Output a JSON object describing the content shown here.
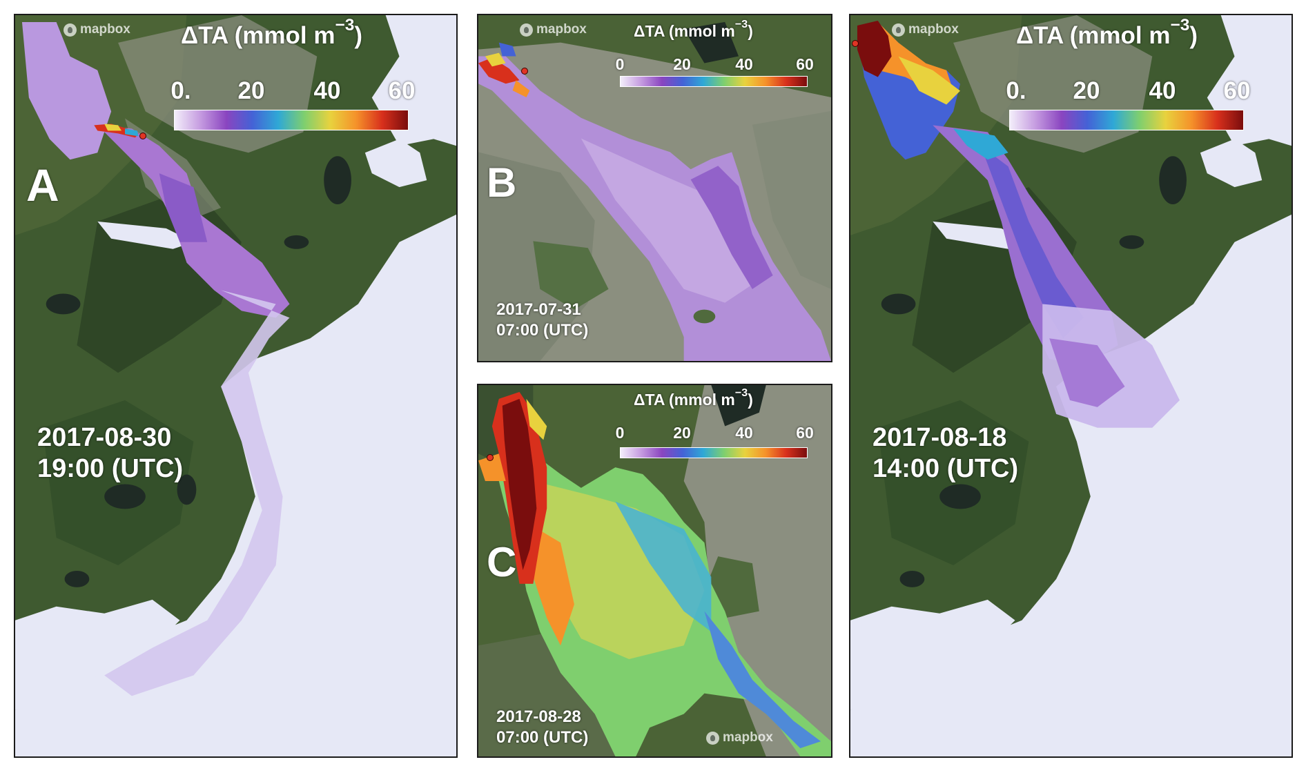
{
  "panels": {
    "a": {
      "letter": "A",
      "timestamp_date": "2017-08-30",
      "timestamp_time": "19:00 (UTC)",
      "logo": "mapbox",
      "colorbar": {
        "title": "ΔTA (mmol m",
        "title_exp": "−3",
        "title_close": ")",
        "ticks": [
          "0.",
          "20",
          "40",
          "60"
        ]
      }
    },
    "b": {
      "letter": "B",
      "timestamp_date": "2017-07-31",
      "timestamp_time": "07:00 (UTC)",
      "logo": "mapbox",
      "colorbar": {
        "title": "ΔTA (mmol m",
        "title_exp": "−3",
        "title_close": ")",
        "ticks": [
          "0",
          "20",
          "40",
          "60"
        ]
      }
    },
    "c": {
      "letter": "C",
      "timestamp_date": "2017-08-28",
      "timestamp_time": "07:00 (UTC)",
      "logo": "mapbox",
      "colorbar": {
        "title": "ΔTA (mmol m",
        "title_exp": "−3",
        "title_close": ")",
        "ticks": [
          "0",
          "20",
          "40",
          "60"
        ]
      }
    },
    "d": {
      "timestamp_date": "2017-08-18",
      "timestamp_time": "14:00 (UTC)",
      "logo": "mapbox",
      "colorbar": {
        "title": "ΔTA (mmol m",
        "title_exp": "−3",
        "title_close": ")",
        "ticks": [
          "0.",
          "20",
          "40",
          "60"
        ]
      }
    }
  },
  "colorscale": {
    "min": 0,
    "max": 60,
    "colors": [
      "#f3eefa",
      "#c59be0",
      "#8a45c0",
      "#4462d6",
      "#2fa8d6",
      "#7fcf6e",
      "#e8d23e",
      "#f5922a",
      "#d8301c",
      "#7a0d0d"
    ]
  },
  "colors": {
    "land": "#3f5a30",
    "land_dark": "#2c4424",
    "urban": "#8a8d7e",
    "water": "#e6e8f6",
    "panel_border": "#1a1a1a"
  }
}
